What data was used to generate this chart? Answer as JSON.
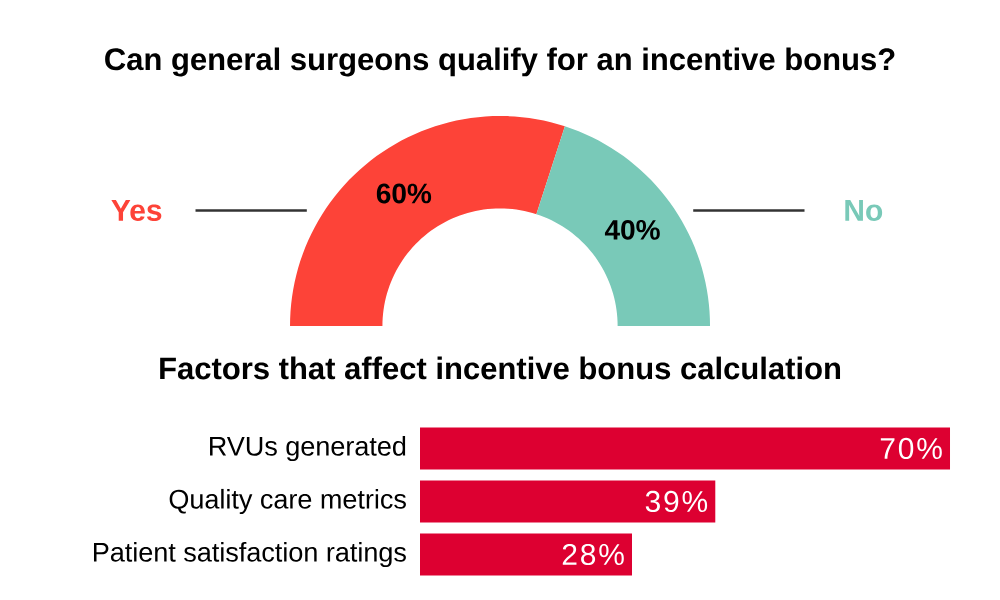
{
  "chart_data": [
    {
      "type": "donut",
      "title": "Can general surgeons qualify for an incentive bonus?",
      "categories": [
        "Yes",
        "No"
      ],
      "values": [
        60,
        40
      ],
      "colors": [
        "#fd4338",
        "#79c9b8"
      ],
      "value_labels": [
        "60%",
        "40%"
      ]
    },
    {
      "type": "bar",
      "orientation": "horizontal",
      "title": "Factors that affect incentive bonus calculation",
      "categories": [
        "RVUs generated",
        "Quality care metrics",
        "Patient satisfaction ratings"
      ],
      "values": [
        70,
        39,
        28
      ],
      "color": "#dd0031",
      "value_labels": [
        "70%",
        "39%",
        "28%"
      ],
      "xlim": [
        0,
        70
      ],
      "tick_labels": "y"
    }
  ]
}
